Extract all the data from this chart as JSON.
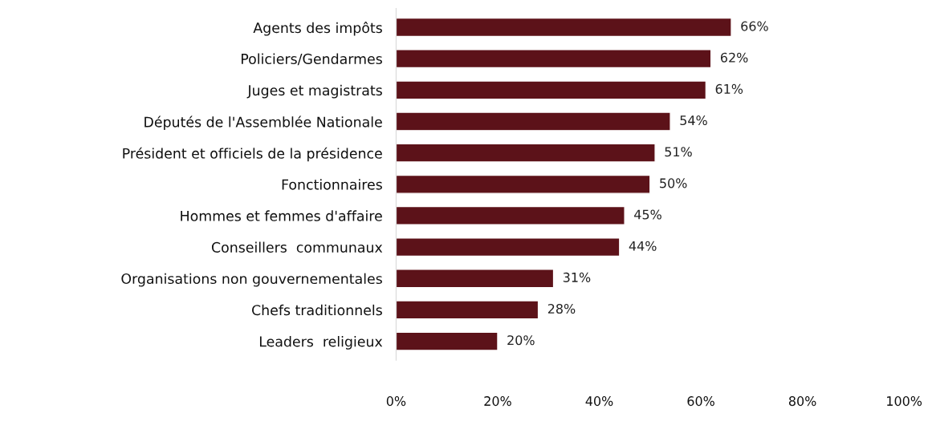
{
  "chart_data": {
    "type": "bar",
    "orientation": "horizontal",
    "categories": [
      "Agents des impôts",
      "Policiers/Gendarmes",
      "Juges et magistrats",
      "Députés de l'Assemblée Nationale",
      "Président et officiels de la présidence",
      "Fonctionnaires",
      "Hommes et femmes d'affaire",
      "Conseillers  communaux",
      "Organisations non gouvernementales",
      "Chefs traditionnels",
      "Leaders  religieux"
    ],
    "values": [
      66,
      62,
      61,
      54,
      51,
      50,
      45,
      44,
      31,
      28,
      20
    ],
    "value_labels": [
      "66%",
      "62%",
      "61%",
      "54%",
      "51%",
      "50%",
      "45%",
      "44%",
      "31%",
      "28%",
      "20%"
    ],
    "color": "#5c1219",
    "xlim": [
      0,
      100
    ],
    "xticks": [
      {
        "value": 0,
        "label": "0%"
      },
      {
        "value": 20,
        "label": "20%"
      },
      {
        "value": 40,
        "label": "40%"
      },
      {
        "value": 60,
        "label": "60%"
      },
      {
        "value": 80,
        "label": "80%"
      },
      {
        "value": 100,
        "label": "100%"
      }
    ],
    "grid": false,
    "legend": false
  }
}
